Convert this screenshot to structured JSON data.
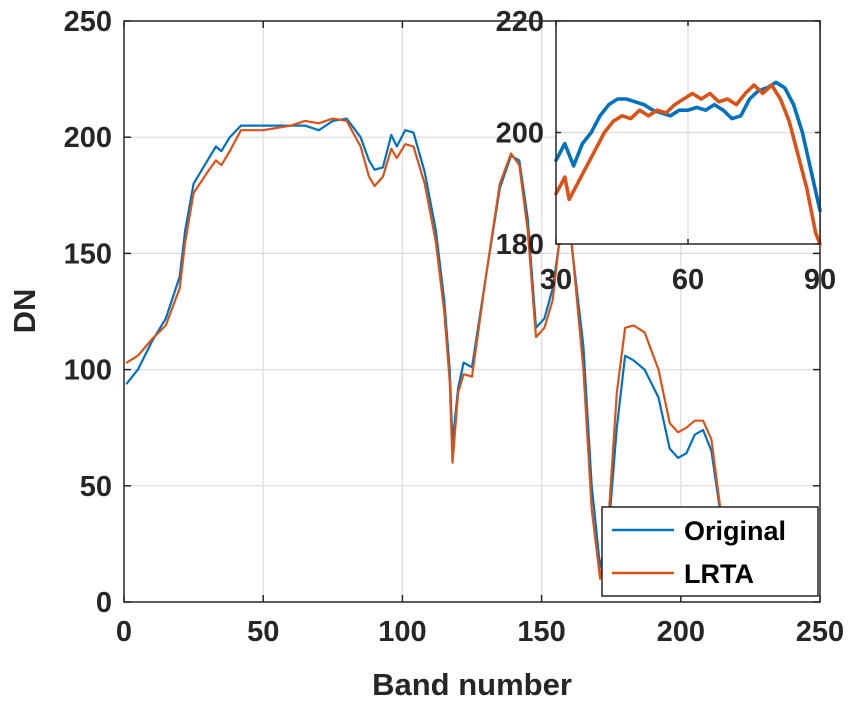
{
  "chart_data": [
    {
      "type": "line",
      "title": "",
      "xlabel": "Band number",
      "ylabel": "DN",
      "xlim": [
        0,
        250
      ],
      "ylim": [
        0,
        250
      ],
      "xticks": [
        0,
        50,
        100,
        150,
        200,
        250
      ],
      "yticks": [
        0,
        50,
        100,
        150,
        200,
        250
      ],
      "grid": true,
      "legend": "bottom-right",
      "series": [
        {
          "name": "Original",
          "color": "#0072BD",
          "points": [
            [
              1,
              94
            ],
            [
              5,
              100
            ],
            [
              10,
              112
            ],
            [
              15,
              122
            ],
            [
              20,
              140
            ],
            [
              22,
              160
            ],
            [
              25,
              180
            ],
            [
              30,
              190
            ],
            [
              33,
              196
            ],
            [
              35,
              194
            ],
            [
              38,
              200
            ],
            [
              42,
              205
            ],
            [
              50,
              205
            ],
            [
              60,
              205
            ],
            [
              65,
              205
            ],
            [
              70,
              203
            ],
            [
              75,
              207
            ],
            [
              80,
              208
            ],
            [
              85,
              200
            ],
            [
              88,
              190
            ],
            [
              90,
              186
            ],
            [
              93,
              187
            ],
            [
              96,
              201
            ],
            [
              98,
              196
            ],
            [
              101,
              203
            ],
            [
              104,
              202
            ],
            [
              108,
              185
            ],
            [
              112,
              160
            ],
            [
              115,
              130
            ],
            [
              117,
              100
            ],
            [
              118,
              68
            ],
            [
              120,
              92
            ],
            [
              122,
              103
            ],
            [
              125,
              101
            ],
            [
              130,
              140
            ],
            [
              135,
              178
            ],
            [
              139,
              192
            ],
            [
              142,
              190
            ],
            [
              145,
              165
            ],
            [
              148,
              118
            ],
            [
              151,
              122
            ],
            [
              154,
              135
            ],
            [
              157,
              160
            ],
            [
              160,
              162
            ],
            [
              165,
              110
            ],
            [
              168,
              50
            ],
            [
              171,
              15
            ],
            [
              174,
              30
            ],
            [
              177,
              75
            ],
            [
              180,
              106
            ],
            [
              183,
              104
            ],
            [
              187,
              100
            ],
            [
              192,
              88
            ],
            [
              196,
              66
            ],
            [
              199,
              62
            ],
            [
              202,
              64
            ],
            [
              205,
              72
            ],
            [
              208,
              74
            ],
            [
              211,
              65
            ],
            [
              214,
              40
            ],
            [
              217,
              20
            ]
          ]
        },
        {
          "name": "LRTA",
          "color": "#D95319",
          "points": [
            [
              1,
              103
            ],
            [
              5,
              106
            ],
            [
              10,
              113
            ],
            [
              15,
              119
            ],
            [
              20,
              135
            ],
            [
              22,
              155
            ],
            [
              25,
              176
            ],
            [
              30,
              185
            ],
            [
              33,
              190
            ],
            [
              35,
              188
            ],
            [
              38,
              194
            ],
            [
              42,
              203
            ],
            [
              50,
              203
            ],
            [
              60,
              205
            ],
            [
              65,
              207
            ],
            [
              70,
              206
            ],
            [
              75,
              208
            ],
            [
              80,
              207
            ],
            [
              85,
              196
            ],
            [
              88,
              183
            ],
            [
              90,
              179
            ],
            [
              93,
              183
            ],
            [
              96,
              195
            ],
            [
              98,
              191
            ],
            [
              101,
              197
            ],
            [
              104,
              196
            ],
            [
              108,
              180
            ],
            [
              112,
              155
            ],
            [
              115,
              125
            ],
            [
              117,
              95
            ],
            [
              118,
              60
            ],
            [
              120,
              90
            ],
            [
              122,
              98
            ],
            [
              125,
              97
            ],
            [
              130,
              140
            ],
            [
              135,
              180
            ],
            [
              139,
              193
            ],
            [
              142,
              188
            ],
            [
              145,
              160
            ],
            [
              148,
              114
            ],
            [
              151,
              118
            ],
            [
              154,
              130
            ],
            [
              157,
              162
            ],
            [
              160,
              165
            ],
            [
              165,
              100
            ],
            [
              168,
              40
            ],
            [
              171,
              10
            ],
            [
              174,
              35
            ],
            [
              177,
              90
            ],
            [
              180,
              118
            ],
            [
              183,
              119
            ],
            [
              187,
              116
            ],
            [
              192,
              100
            ],
            [
              196,
              77
            ],
            [
              199,
              73
            ],
            [
              202,
              75
            ],
            [
              205,
              78
            ],
            [
              208,
              78
            ],
            [
              211,
              70
            ],
            [
              214,
              42
            ],
            [
              217,
              20
            ]
          ]
        }
      ]
    },
    {
      "type": "line",
      "title": "",
      "xlabel": "",
      "ylabel": "",
      "xlim": [
        30,
        90
      ],
      "ylim": [
        180,
        220
      ],
      "xticks": [
        30,
        60,
        90
      ],
      "yticks": [
        180,
        200,
        220
      ],
      "grid": true,
      "series": [
        {
          "name": "Original",
          "color": "#0072BD",
          "points": [
            [
              30,
              195
            ],
            [
              32,
              198
            ],
            [
              34,
              194
            ],
            [
              36,
              198
            ],
            [
              38,
              200
            ],
            [
              40,
              203
            ],
            [
              42,
              205
            ],
            [
              44,
              206
            ],
            [
              46,
              206
            ],
            [
              48,
              205.5
            ],
            [
              50,
              205
            ],
            [
              52,
              204
            ],
            [
              54,
              203.5
            ],
            [
              56,
              203
            ],
            [
              58,
              204
            ],
            [
              60,
              204
            ],
            [
              62,
              204.5
            ],
            [
              64,
              204
            ],
            [
              66,
              205
            ],
            [
              68,
              204
            ],
            [
              70,
              202.5
            ],
            [
              72,
              203
            ],
            [
              74,
              206
            ],
            [
              76,
              207.5
            ],
            [
              78,
              208
            ],
            [
              80,
              209
            ],
            [
              82,
              208
            ],
            [
              84,
              205
            ],
            [
              86,
              200
            ],
            [
              88,
              193
            ],
            [
              90,
              186
            ]
          ]
        },
        {
          "name": "LRTA",
          "color": "#D95319",
          "points": [
            [
              30,
              189
            ],
            [
              32,
              192
            ],
            [
              33,
              188
            ],
            [
              35,
              191
            ],
            [
              37,
              194
            ],
            [
              39,
              197
            ],
            [
              41,
              200
            ],
            [
              43,
              202
            ],
            [
              45,
              203
            ],
            [
              47,
              202.5
            ],
            [
              49,
              204
            ],
            [
              51,
              203
            ],
            [
              53,
              204
            ],
            [
              55,
              203.5
            ],
            [
              57,
              205
            ],
            [
              59,
              206
            ],
            [
              61,
              207
            ],
            [
              63,
              206
            ],
            [
              65,
              207
            ],
            [
              67,
              205.5
            ],
            [
              69,
              206
            ],
            [
              71,
              205
            ],
            [
              73,
              207
            ],
            [
              75,
              208.5
            ],
            [
              77,
              207
            ],
            [
              79,
              208.5
            ],
            [
              81,
              206
            ],
            [
              83,
              202
            ],
            [
              85,
              196
            ],
            [
              87,
              190
            ],
            [
              89,
              182
            ],
            [
              90,
              180
            ]
          ]
        }
      ]
    }
  ]
}
